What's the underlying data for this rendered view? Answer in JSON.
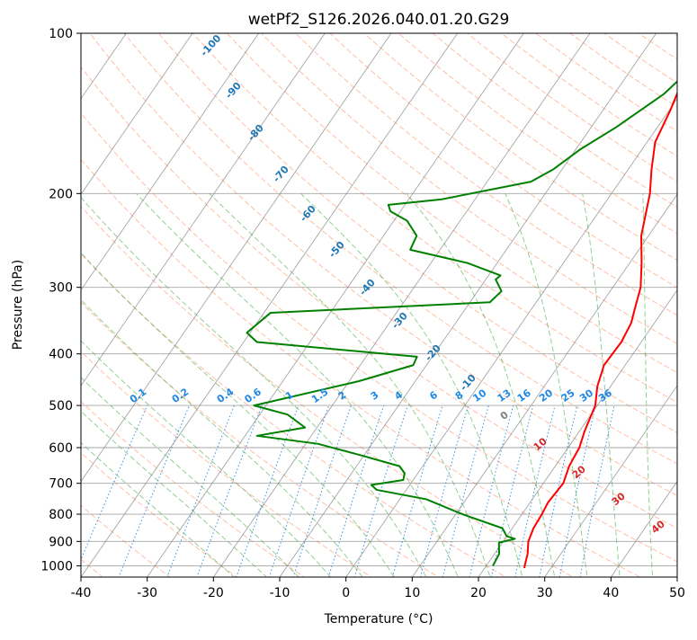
{
  "chart_data": {
    "type": "skew-t",
    "title": "wetPf2_S126.2026.040.01.20.G29",
    "xlabel": "Temperature (°C)",
    "ylabel": "Pressure (hPa)",
    "xlim": [
      -40,
      50
    ],
    "ylim_hpa": [
      1050,
      100
    ],
    "log_pressure_axis": true,
    "grid": true,
    "x_ticks": [
      -40,
      -30,
      -20,
      -10,
      0,
      10,
      20,
      30,
      40,
      50
    ],
    "y_ticks": [
      100,
      200,
      300,
      400,
      500,
      600,
      700,
      800,
      900,
      1000
    ],
    "temperature": {
      "color": "#ff0000",
      "points": [
        [
          100,
          -0.5
        ],
        [
          120,
          -1.3
        ],
        [
          140,
          0.2
        ],
        [
          160,
          1.2
        ],
        [
          180,
          3.5
        ],
        [
          200,
          5.8
        ],
        [
          240,
          8.9
        ],
        [
          270,
          11.8
        ],
        [
          300,
          14.2
        ],
        [
          330,
          15.6
        ],
        [
          350,
          16.5
        ],
        [
          380,
          17.0
        ],
        [
          420,
          16.8
        ],
        [
          460,
          18.0
        ],
        [
          500,
          19.7
        ],
        [
          560,
          20.8
        ],
        [
          600,
          21.7
        ],
        [
          650,
          22.1
        ],
        [
          700,
          23.0
        ],
        [
          760,
          22.7
        ],
        [
          800,
          23.0
        ],
        [
          850,
          23.2
        ],
        [
          900,
          23.8
        ],
        [
          950,
          25.0
        ],
        [
          1000,
          25.8
        ],
        [
          1010,
          26.0
        ]
      ]
    },
    "dewpoint": {
      "color": "#008000",
      "points": [
        [
          100,
          -0.3
        ],
        [
          115,
          -0.9
        ],
        [
          130,
          -2.5
        ],
        [
          150,
          -6.2
        ],
        [
          165,
          -9.3
        ],
        [
          180,
          -11.3
        ],
        [
          190,
          -13.4
        ],
        [
          205,
          -25.0
        ],
        [
          210,
          -32.5
        ],
        [
          216,
          -31.5
        ],
        [
          225,
          -28.0
        ],
        [
          240,
          -25.0
        ],
        [
          255,
          -24.5
        ],
        [
          270,
          -14.5
        ],
        [
          285,
          -8.2
        ],
        [
          290,
          -8.5
        ],
        [
          305,
          -6.4
        ],
        [
          320,
          -7.0
        ],
        [
          335,
          -39.0
        ],
        [
          365,
          -40.5
        ],
        [
          380,
          -38.0
        ],
        [
          405,
          -12.3
        ],
        [
          420,
          -12.0
        ],
        [
          450,
          -18.5
        ],
        [
          500,
          -31.8
        ],
        [
          520,
          -25.8
        ],
        [
          550,
          -21.8
        ],
        [
          570,
          -28.2
        ],
        [
          590,
          -18.2
        ],
        [
          620,
          -10.5
        ],
        [
          650,
          -3.5
        ],
        [
          670,
          -2.0
        ],
        [
          690,
          -1.5
        ],
        [
          705,
          -5.8
        ],
        [
          720,
          -4.5
        ],
        [
          750,
          4.0
        ],
        [
          800,
          11.0
        ],
        [
          850,
          18.5
        ],
        [
          880,
          20.0
        ],
        [
          890,
          21.5
        ],
        [
          905,
          19.5
        ],
        [
          950,
          20.7
        ],
        [
          1000,
          21.0
        ]
      ]
    },
    "dry_adiabat_labels": [
      "-100",
      "-90",
      "-80",
      "-70",
      "-60",
      "-50",
      "-40",
      "-30",
      "-20",
      "-10"
    ],
    "mixing_ratio_labels": [
      "0.1",
      "0.2",
      "0.4",
      "0.6",
      "1",
      "1.5",
      "2",
      "3",
      "4",
      "6",
      "8",
      "10",
      "13",
      "16",
      "20",
      "25",
      "30",
      "36"
    ],
    "mixing_ratio_values": [
      0.1,
      0.2,
      0.4,
      0.6,
      1,
      1.5,
      2,
      3,
      4,
      6,
      8,
      10,
      13,
      16,
      20,
      25,
      30,
      36
    ],
    "moist_adiabat_labels": [
      "0",
      "10",
      "20",
      "30",
      "40"
    ],
    "colors": {
      "dry_adiabat": "#ff7f50",
      "moist_adiabat": "#2ca02c",
      "mixing_ratio": "#1e88e5",
      "isotherm": "#808080",
      "isobar": "#808080",
      "dry_label": "#1f77b4",
      "mixing_label": "#1e88e5",
      "moist_label": "#d62728",
      "zero_moist_label": "#808080"
    }
  }
}
